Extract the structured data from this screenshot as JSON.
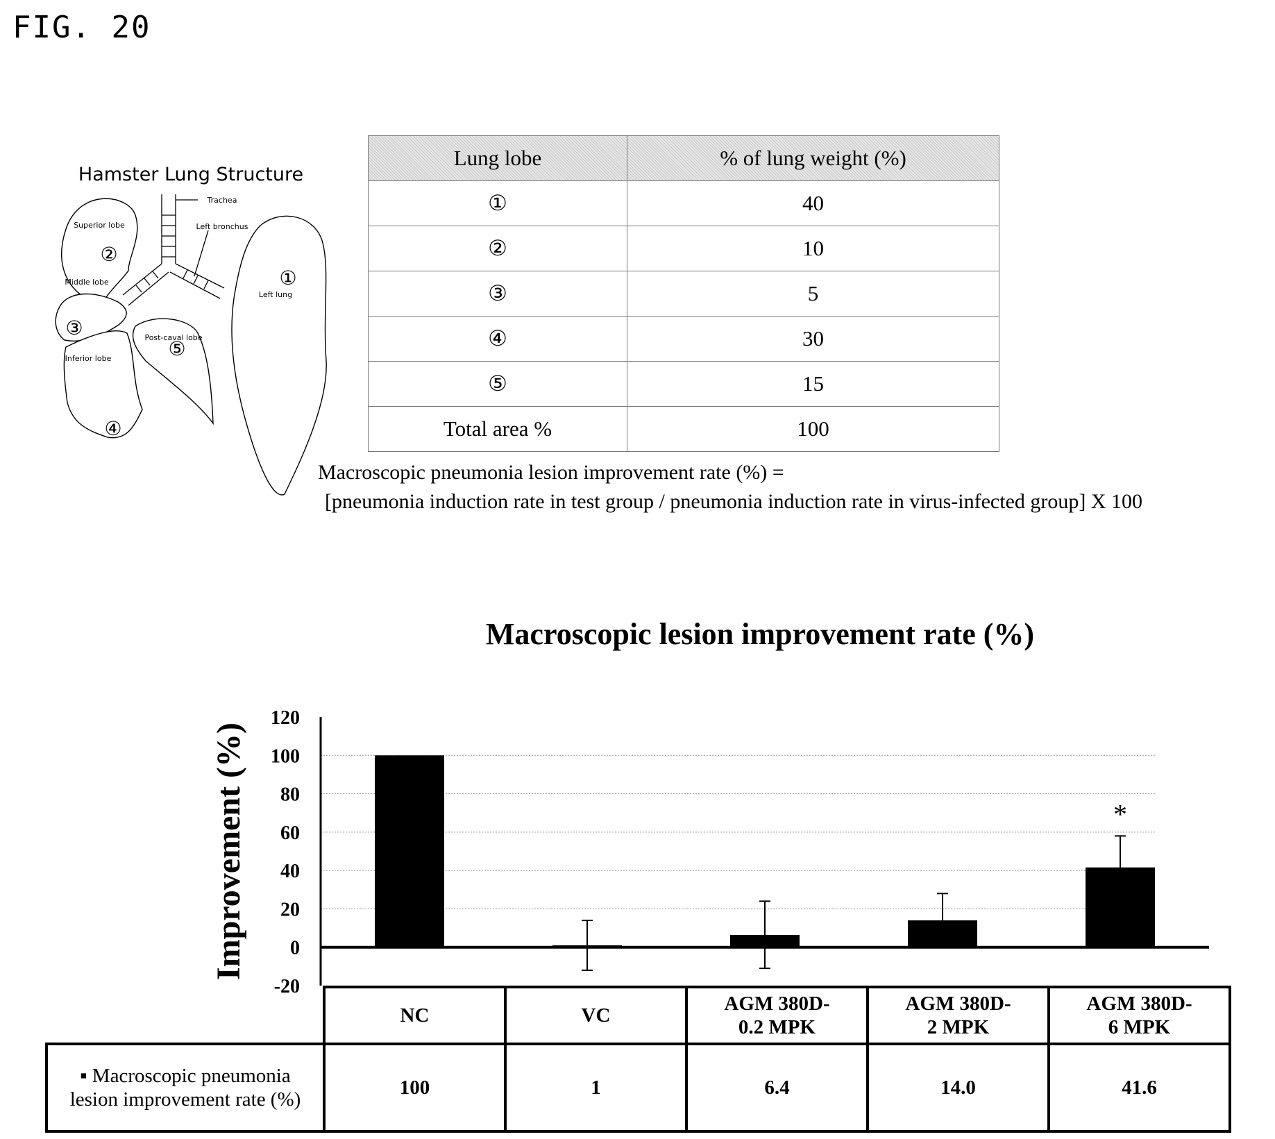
{
  "figure_label": "FIG. 20",
  "lung_diagram": {
    "title": "Hamster Lung Structure",
    "labels": {
      "trachea": "Trachea",
      "left_bronchus": "Left bronchus",
      "superior": "Superior lobe",
      "middle": "Middle lobe",
      "inferior": "Inferior lobe",
      "post_caval": "Post-caval lobe",
      "left_lung": "Left lung"
    },
    "numbers": [
      "①",
      "②",
      "③",
      "④",
      "⑤"
    ]
  },
  "lobe_table": {
    "headers": [
      "Lung lobe",
      "% of lung weight (%)"
    ],
    "rows": [
      [
        "①",
        "40"
      ],
      [
        "②",
        "10"
      ],
      [
        "③",
        "5"
      ],
      [
        "④",
        "30"
      ],
      [
        "⑤",
        "15"
      ],
      [
        "Total area %",
        "100"
      ]
    ]
  },
  "formula": {
    "line1": "Macroscopic pneumonia lesion improvement rate (%) =",
    "line2": "[pneumonia induction rate in test group / pneumonia induction rate in virus-infected group] X 100"
  },
  "chart_data": {
    "type": "bar",
    "title": "Macroscopic lesion improvement rate (%)",
    "ylabel": "Improvement (%)",
    "xlabel": "",
    "ylim": [
      -20,
      120
    ],
    "yticks": [
      120,
      100,
      80,
      60,
      40,
      20,
      0,
      -20
    ],
    "grid": true,
    "categories": [
      "NC",
      "VC",
      "AGM 380D-0.2 MPK",
      "AGM 380D-2 MPK",
      "AGM 380D-6 MPK"
    ],
    "category_lines": [
      [
        "NC"
      ],
      [
        "VC"
      ],
      [
        "AGM 380D-",
        "0.2 MPK"
      ],
      [
        "AGM 380D-",
        "2 MPK"
      ],
      [
        "AGM 380D-",
        "6 MPK"
      ]
    ],
    "series": [
      {
        "name": "Macroscopic pneumonia lesion improvement rate (%)",
        "values": [
          100,
          1,
          6.4,
          14.0,
          41.6
        ],
        "value_labels": [
          "100",
          "1",
          "6.4",
          "14.0",
          "41.6"
        ],
        "error_upper": [
          0,
          14,
          24,
          28,
          58
        ],
        "error_lower": [
          0,
          -12,
          -11,
          0,
          25
        ]
      }
    ],
    "annotations": [
      {
        "category": "AGM 380D-6 MPK",
        "text": "*"
      }
    ],
    "row_label_lines": [
      "▪ Macroscopic pneumonia",
      "lesion improvement rate (%)"
    ],
    "bar_color": "#000000"
  }
}
